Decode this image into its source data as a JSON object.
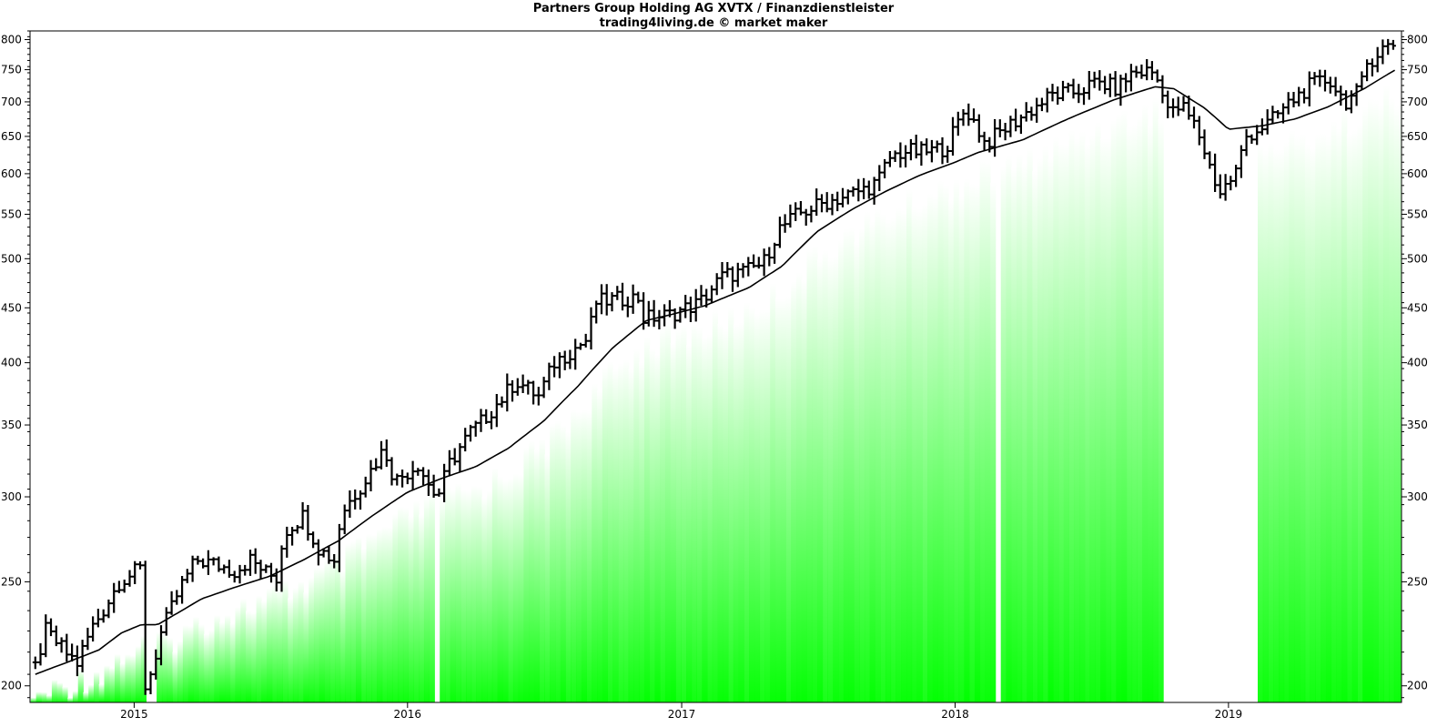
{
  "colors": {
    "background": "#ffffff",
    "fill_strong": "#00ff00",
    "fill_light": "#ffffff",
    "bar": "#000000",
    "moving_average": "#000000",
    "frame": "#000000"
  },
  "chart_data": {
    "type": "ohlc",
    "title": "Partners Group Holding AG XVTX / Finanzdienstleister",
    "subtitle": "trading4living.de © market maker",
    "y_scale": "log",
    "ylim": [
      193,
      815
    ],
    "y_ticks": [
      200,
      250,
      300,
      350,
      400,
      450,
      500,
      550,
      600,
      650,
      700,
      750,
      800
    ],
    "y_tick_labels": [
      "200",
      "250",
      "300",
      "350",
      "400",
      "450",
      "500",
      "550",
      "600",
      "650",
      "700",
      "750",
      "800"
    ],
    "x_range": [
      "2014-08-15",
      "2019-08-20"
    ],
    "x_ticks": [
      "2015-01-01",
      "2016-01-01",
      "2017-01-01",
      "2018-01-01",
      "2019-01-01"
    ],
    "x_tick_labels": [
      "2015",
      "2016",
      "2017",
      "2018",
      "2019"
    ],
    "legend": "none",
    "grid": false,
    "price_path": [
      [
        "2014-08-22",
        208
      ],
      [
        "2014-09-05",
        225
      ],
      [
        "2014-10-01",
        215
      ],
      [
        "2014-10-17",
        210
      ],
      [
        "2014-11-05",
        226
      ],
      [
        "2014-11-25",
        238
      ],
      [
        "2014-12-12",
        250
      ],
      [
        "2015-01-09",
        257
      ],
      [
        "2015-01-16",
        200
      ],
      [
        "2015-01-26",
        208
      ],
      [
        "2015-02-04",
        222
      ],
      [
        "2015-03-05",
        248
      ],
      [
        "2015-03-25",
        262
      ],
      [
        "2015-04-15",
        260
      ],
      [
        "2015-05-15",
        256
      ],
      [
        "2015-06-05",
        262
      ],
      [
        "2015-06-26",
        255
      ],
      [
        "2015-07-10",
        252
      ],
      [
        "2015-07-20",
        278
      ],
      [
        "2015-08-14",
        288
      ],
      [
        "2015-09-05",
        268
      ],
      [
        "2015-09-25",
        262
      ],
      [
        "2015-10-05",
        290
      ],
      [
        "2015-10-20",
        300
      ],
      [
        "2015-11-10",
        315
      ],
      [
        "2015-12-01",
        333
      ],
      [
        "2015-12-15",
        310
      ],
      [
        "2016-01-15",
        322
      ],
      [
        "2016-02-01",
        305
      ],
      [
        "2016-02-10",
        300
      ],
      [
        "2016-02-26",
        322
      ],
      [
        "2016-03-25",
        345
      ],
      [
        "2016-04-08",
        352
      ],
      [
        "2016-05-05",
        370
      ],
      [
        "2016-05-25",
        385
      ],
      [
        "2016-06-10",
        378
      ],
      [
        "2016-06-24",
        372
      ],
      [
        "2016-07-15",
        400
      ],
      [
        "2016-08-10",
        412
      ],
      [
        "2016-08-31",
        422
      ],
      [
        "2016-09-05",
        455
      ],
      [
        "2016-10-05",
        458
      ],
      [
        "2016-11-05",
        460
      ],
      [
        "2016-11-10",
        440
      ],
      [
        "2016-12-15",
        443
      ],
      [
        "2017-01-25",
        455
      ],
      [
        "2017-02-25",
        482
      ],
      [
        "2017-03-25",
        486
      ],
      [
        "2017-04-20",
        495
      ],
      [
        "2017-05-10",
        532
      ],
      [
        "2017-06-05",
        550
      ],
      [
        "2017-07-05",
        562
      ],
      [
        "2017-08-01",
        570
      ],
      [
        "2017-09-01",
        580
      ],
      [
        "2017-09-20",
        590
      ],
      [
        "2017-10-05",
        620
      ],
      [
        "2017-10-25",
        630
      ],
      [
        "2017-11-20",
        628
      ],
      [
        "2017-12-20",
        635
      ],
      [
        "2018-01-15",
        690
      ],
      [
        "2018-02-01",
        660
      ],
      [
        "2018-02-10",
        640
      ],
      [
        "2018-03-01",
        655
      ],
      [
        "2018-03-20",
        670
      ],
      [
        "2018-04-15",
        690
      ],
      [
        "2018-05-10",
        710
      ],
      [
        "2018-06-10",
        715
      ],
      [
        "2018-07-10",
        730
      ],
      [
        "2018-08-05",
        720
      ],
      [
        "2018-08-25",
        745
      ],
      [
        "2018-09-20",
        748
      ],
      [
        "2018-10-05",
        720
      ],
      [
        "2018-10-15",
        680
      ],
      [
        "2018-10-30",
        695
      ],
      [
        "2018-11-20",
        660
      ],
      [
        "2018-12-05",
        615
      ],
      [
        "2018-12-20",
        575
      ],
      [
        "2019-01-10",
        600
      ],
      [
        "2019-01-25",
        650
      ],
      [
        "2019-02-25",
        670
      ],
      [
        "2019-03-20",
        695
      ],
      [
        "2019-04-20",
        725
      ],
      [
        "2019-05-15",
        735
      ],
      [
        "2019-06-05",
        700
      ],
      [
        "2019-06-25",
        715
      ],
      [
        "2019-07-05",
        760
      ],
      [
        "2019-07-25",
        785
      ],
      [
        "2019-08-15",
        795
      ]
    ],
    "moving_average": [
      [
        "2014-08-22",
        205
      ],
      [
        "2014-10-01",
        210
      ],
      [
        "2014-11-15",
        216
      ],
      [
        "2014-12-15",
        224
      ],
      [
        "2015-01-10",
        228
      ],
      [
        "2015-02-01",
        228
      ],
      [
        "2015-03-01",
        234
      ],
      [
        "2015-04-01",
        241
      ],
      [
        "2015-05-15",
        247
      ],
      [
        "2015-07-01",
        253
      ],
      [
        "2015-08-15",
        262
      ],
      [
        "2015-10-01",
        273
      ],
      [
        "2015-11-15",
        288
      ],
      [
        "2016-01-01",
        303
      ],
      [
        "2016-02-15",
        312
      ],
      [
        "2016-04-01",
        320
      ],
      [
        "2016-05-15",
        333
      ],
      [
        "2016-07-01",
        353
      ],
      [
        "2016-08-15",
        380
      ],
      [
        "2016-10-01",
        413
      ],
      [
        "2016-11-15",
        438
      ],
      [
        "2016-12-15",
        443
      ],
      [
        "2017-02-01",
        452
      ],
      [
        "2017-04-01",
        470
      ],
      [
        "2017-05-15",
        492
      ],
      [
        "2017-07-01",
        530
      ],
      [
        "2017-08-15",
        555
      ],
      [
        "2017-10-01",
        578
      ],
      [
        "2017-11-15",
        598
      ],
      [
        "2018-01-01",
        615
      ],
      [
        "2018-02-01",
        628
      ],
      [
        "2018-04-01",
        645
      ],
      [
        "2018-06-01",
        675
      ],
      [
        "2018-08-01",
        703
      ],
      [
        "2018-09-25",
        723
      ],
      [
        "2018-10-20",
        720
      ],
      [
        "2018-12-01",
        690
      ],
      [
        "2019-01-01",
        660
      ],
      [
        "2019-02-15",
        665
      ],
      [
        "2019-04-01",
        675
      ],
      [
        "2019-05-15",
        693
      ],
      [
        "2019-07-01",
        720
      ],
      [
        "2019-08-15",
        752
      ]
    ],
    "fill_gaps": [
      [
        "2015-01-13",
        "2015-01-26"
      ],
      [
        "2016-02-03",
        "2016-02-10"
      ],
      [
        "2018-02-19",
        "2018-02-27"
      ],
      [
        "2018-10-01",
        "2019-02-05"
      ]
    ]
  }
}
